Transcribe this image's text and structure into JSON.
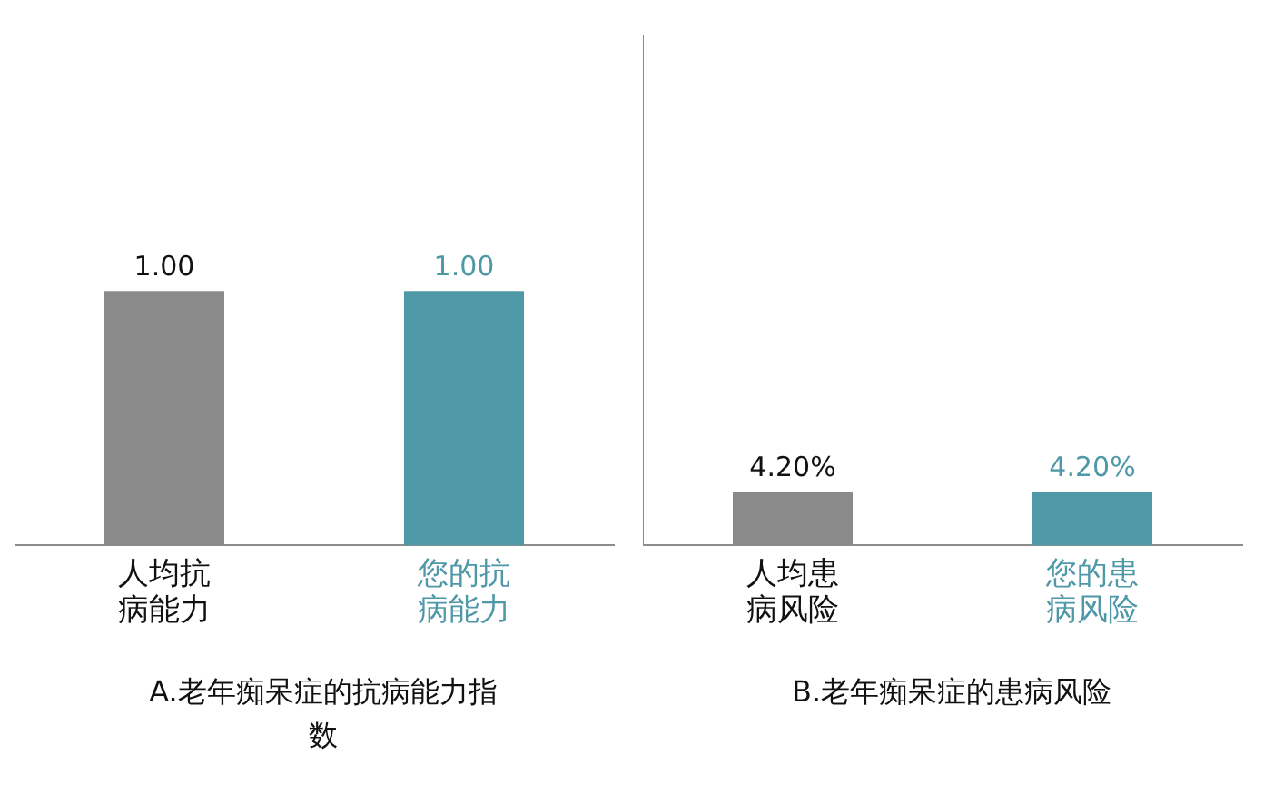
{
  "chart_data": [
    {
      "type": "bar",
      "title": "A.老年痴呆症的抗病能力指数",
      "categories": [
        "人均抗病能力",
        "您的抗病能力"
      ],
      "values": [
        1.0,
        1.0
      ],
      "colors": [
        "#8a8a8a",
        "#4f98a8"
      ],
      "value_labels": [
        "1.00",
        "1.00"
      ],
      "ylim": [
        0,
        2
      ],
      "tick_labels": "x",
      "grid": false,
      "legend": false
    },
    {
      "type": "bar",
      "title": "B.老年痴呆症的患病风险",
      "categories": [
        "人均患病风险",
        "您的患病风险"
      ],
      "values": [
        4.2,
        4.2
      ],
      "colors": [
        "#8a8a8a",
        "#4f98a8"
      ],
      "value_labels": [
        "4.20%",
        "4.20%"
      ],
      "ylim": [
        0,
        40
      ],
      "tick_labels": "x",
      "grid": false,
      "legend": false
    }
  ]
}
